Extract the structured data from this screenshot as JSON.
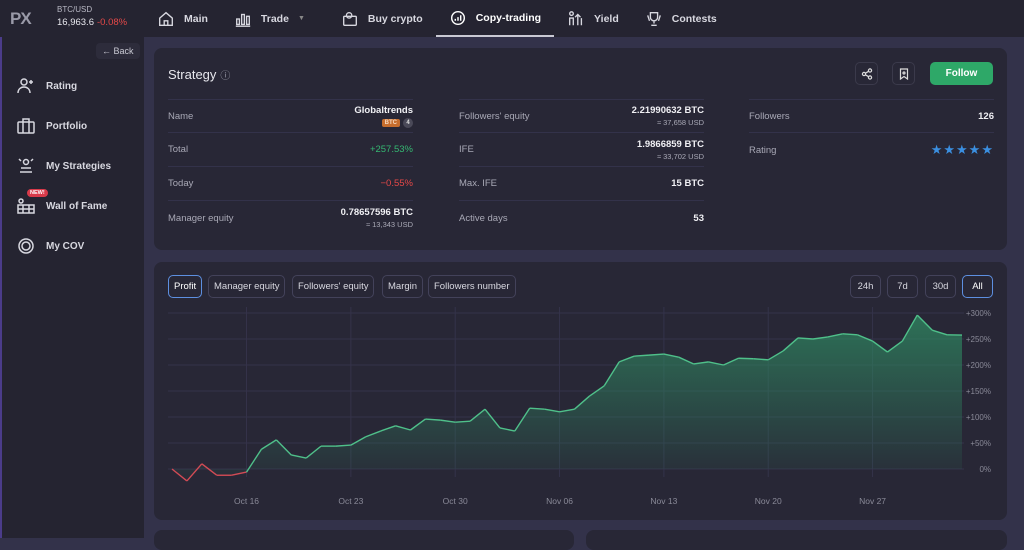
{
  "topbar": {
    "logo": "PX",
    "pair": "BTC/USD",
    "price": "16,963.6",
    "change": "-0.08%",
    "nav": [
      {
        "label": "Main",
        "icon": "home-icon"
      },
      {
        "label": "Trade",
        "icon": "bar-chart-icon"
      },
      {
        "label": "Buy crypto",
        "icon": "wallet-icon"
      },
      {
        "label": "Copy-trading",
        "icon": "copy-trading-icon",
        "active": true
      },
      {
        "label": "Yield",
        "icon": "yield-icon"
      },
      {
        "label": "Contests",
        "icon": "trophy-icon"
      }
    ]
  },
  "sidebar": {
    "back": "Back",
    "items": [
      {
        "label": "Rating",
        "icon": "user-plus-icon"
      },
      {
        "label": "Portfolio",
        "icon": "briefcase-icon"
      },
      {
        "label": "My Strategies",
        "icon": "strategies-icon"
      },
      {
        "label": "Wall of Fame",
        "icon": "wall-icon",
        "badge": "NEW!"
      },
      {
        "label": "My COV",
        "icon": "cov-icon"
      }
    ]
  },
  "strategy": {
    "title": "Strategy",
    "follow": "Follow",
    "col1": [
      {
        "label": "Name",
        "value": "Globaltrends",
        "badge": "BTC",
        "count": "4"
      },
      {
        "label": "Total",
        "value": "+257.53%"
      },
      {
        "label": "Today",
        "value": "−0.55%"
      },
      {
        "label": "Manager equity",
        "value": "0.78657596 BTC",
        "sub": "≈ 13,343 USD"
      }
    ],
    "col2": [
      {
        "label": "Followers' equity",
        "value": "2.21990632 BTC",
        "sub": "≈ 37,658 USD"
      },
      {
        "label": "IFE",
        "value": "1.9866859 BTC",
        "sub": "≈ 33,702 USD"
      },
      {
        "label": "Max. IFE",
        "value": "15 BTC"
      },
      {
        "label": "Active days",
        "value": "53"
      }
    ],
    "col3": [
      {
        "label": "Followers",
        "value": "126"
      },
      {
        "label": "Rating",
        "value": "★★★★★",
        "stars": 5
      }
    ]
  },
  "chart_tabs": [
    "Profit",
    "Manager equity",
    "Followers' equity",
    "Margin",
    "Followers number"
  ],
  "range_tabs": [
    "24h",
    "7d",
    "30d",
    "All"
  ],
  "colors": {
    "accent": "#2ea868",
    "positive": "#35b872",
    "negative": "#e54848",
    "star": "#3b8fe0"
  },
  "chart_data": {
    "type": "area",
    "grid": true,
    "x_start": "Oct 11",
    "x_end": "Dec 02",
    "xticks": [
      "Oct 16",
      "Oct 23",
      "Oct 30",
      "Nov 06",
      "Nov 13",
      "Nov 20",
      "Nov 27"
    ],
    "yticks": [
      "0%",
      "+50%",
      "+100%",
      "+150%",
      "+200%",
      "+250%",
      "+300%"
    ],
    "ylim": [
      -35,
      300
    ],
    "values": [
      0,
      -23,
      10,
      -12,
      -12,
      -6,
      38,
      56,
      27,
      21,
      44,
      44,
      46,
      62,
      73,
      83,
      75,
      96,
      94,
      90,
      92,
      115,
      79,
      73,
      117,
      115,
      110,
      115,
      140,
      160,
      206,
      217,
      219,
      221,
      215,
      202,
      206,
      200,
      213,
      212,
      210,
      227,
      252,
      250,
      254,
      260,
      258,
      246,
      225,
      246,
      296,
      267,
      258,
      257.53
    ]
  }
}
